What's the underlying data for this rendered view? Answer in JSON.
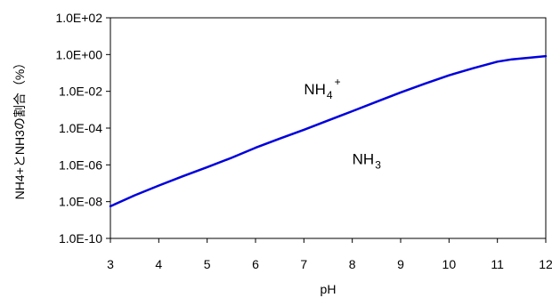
{
  "chart_data": {
    "type": "line",
    "xlabel": "pH",
    "ylabel": "NH4+とNH3の割合（%）",
    "x_ticks": [
      "3",
      "4",
      "5",
      "6",
      "7",
      "8",
      "9",
      "10",
      "11",
      "12"
    ],
    "y_ticks": [
      "1.0E-10",
      "1.0E-08",
      "1.0E-06",
      "1.0E-04",
      "1.0E-02",
      "1.0E+00",
      "1.0E+02"
    ],
    "xlim": [
      3,
      12
    ],
    "ylim": [
      1e-10,
      100
    ],
    "y_scale": "log",
    "grid": false,
    "legend": "none",
    "series": [
      {
        "x": [
          3,
          3.5,
          4,
          4.5,
          5,
          5.5,
          6,
          6.5,
          7,
          7.5,
          8,
          8.5,
          9,
          9.5,
          10,
          10.5,
          11,
          11.3,
          12
        ],
        "y": [
          5.6e-09,
          2.2e-08,
          7.5e-08,
          2.4e-07,
          7.5e-07,
          2.4e-06,
          8.5e-06,
          2.7e-05,
          8.1e-05,
          0.00026,
          0.00083,
          0.0027,
          0.0087,
          0.026,
          0.074,
          0.18,
          0.41,
          0.55,
          0.82
        ],
        "color": "#0000dd"
      }
    ],
    "annotations": [
      {
        "base": "NH",
        "sub": "4",
        "sup": "+",
        "x": 7.0,
        "y": 0.0068
      },
      {
        "base": "NH",
        "sub": "3",
        "sup": "",
        "x": 8.0,
        "y": 1.1e-06
      }
    ]
  }
}
